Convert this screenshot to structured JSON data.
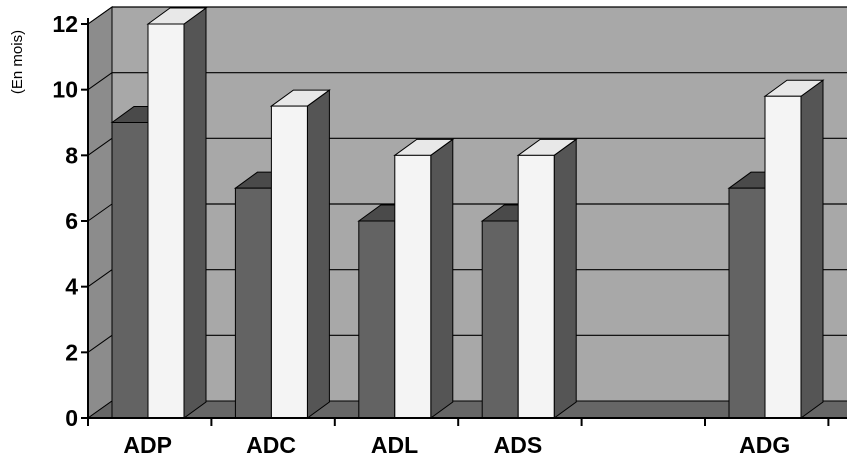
{
  "chart_data": {
    "type": "bar",
    "categories": [
      "ADP",
      "ADC",
      "ADL",
      "ADS",
      "",
      "ADG"
    ],
    "series": [
      {
        "values": [
          9,
          7,
          6,
          6,
          null,
          7
        ],
        "color": "#636363"
      },
      {
        "values": [
          12,
          9.5,
          8,
          8,
          null,
          9.8
        ],
        "color": "#f4f4f4"
      }
    ],
    "ylabel": "(En mois)",
    "ylim": [
      0,
      12
    ],
    "yticks": [
      "0",
      "2",
      "4",
      "6",
      "8",
      "10",
      "12"
    ],
    "grid": true,
    "wall_color": "#a8a8a8",
    "floor_color": "#666666",
    "legend": "none"
  }
}
